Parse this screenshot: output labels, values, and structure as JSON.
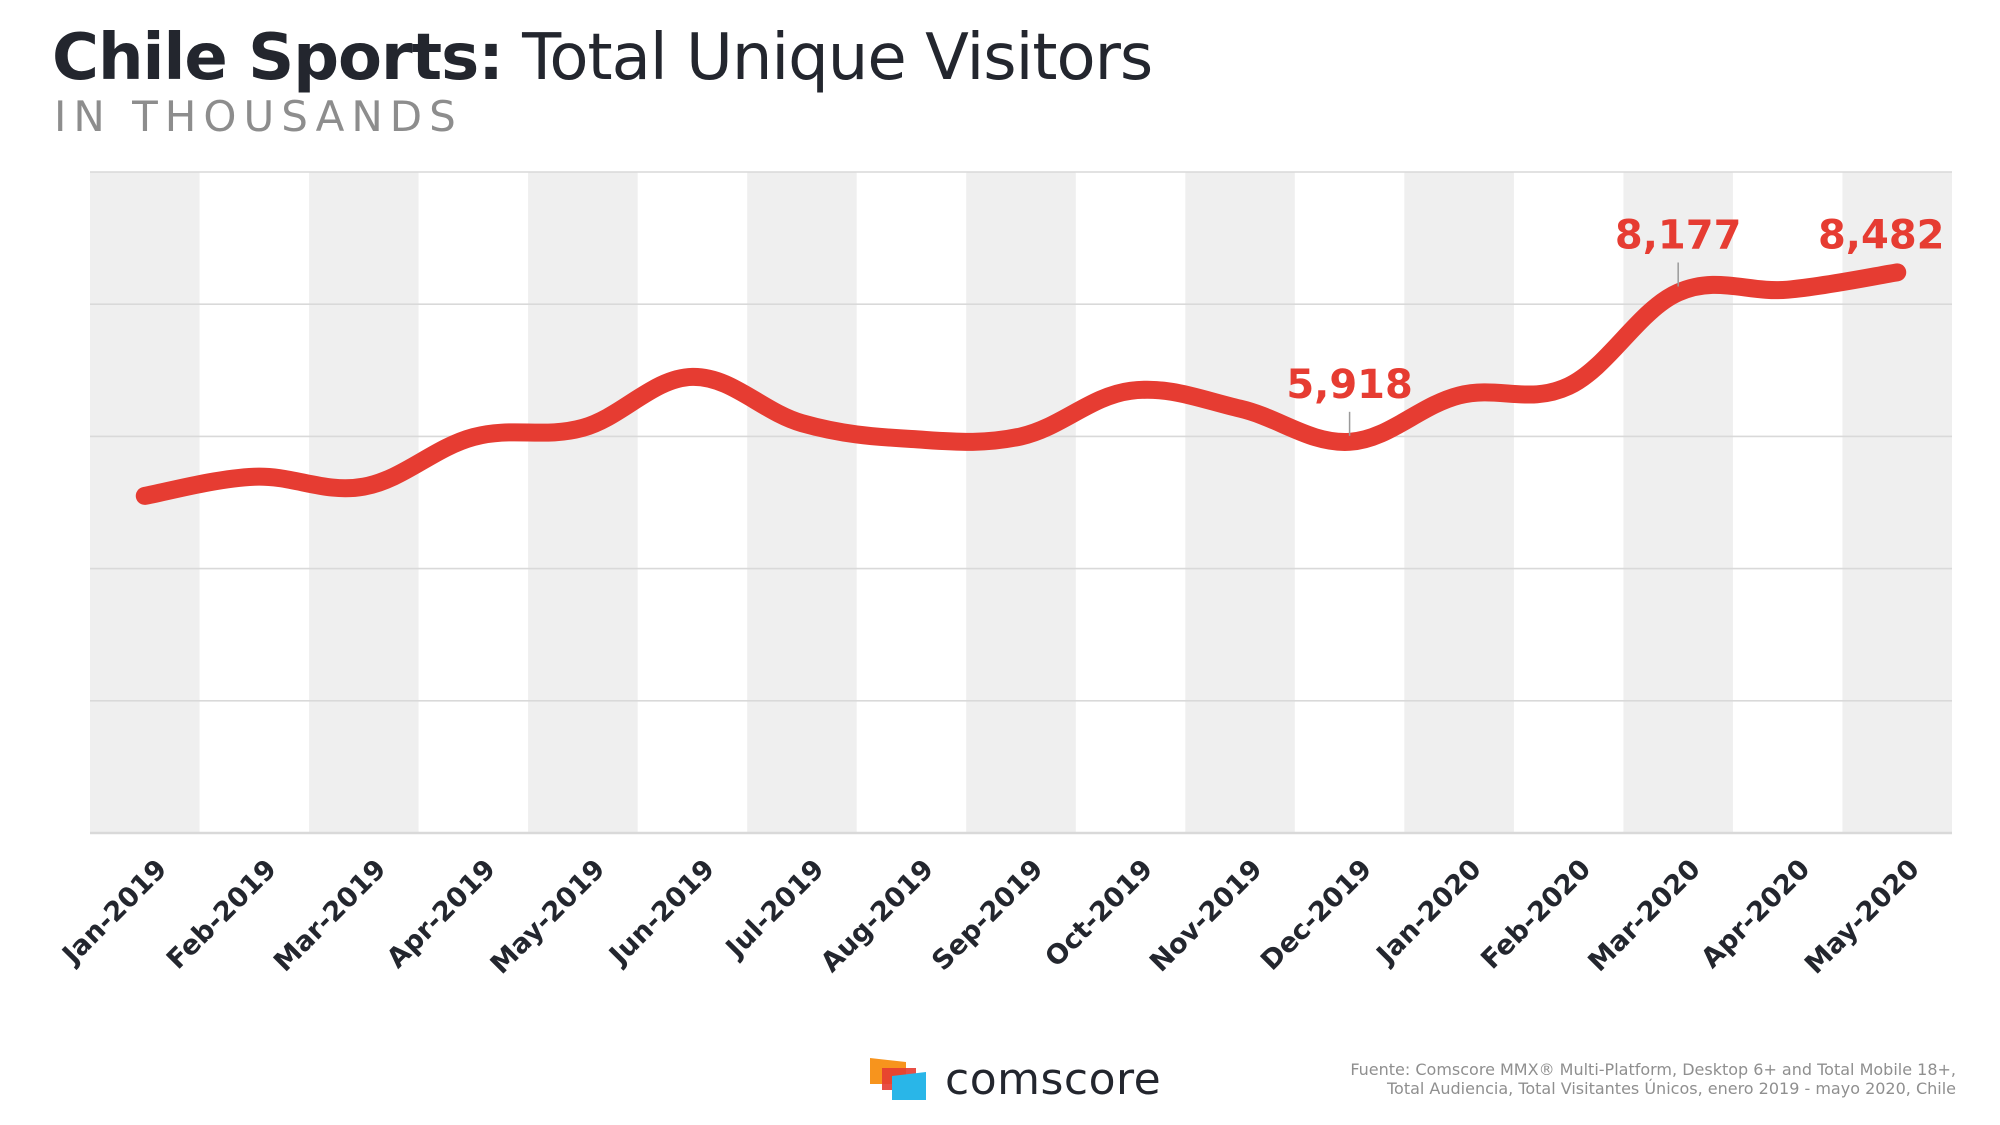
{
  "header": {
    "title_bold": "Chile Sports:",
    "title_rest": " Total Unique Visitors",
    "subtitle": "IN THOUSANDS"
  },
  "footer": {
    "brand": "comscore",
    "source_line1": "Fuente: Comscore MMX® Multi-Platform, Desktop 6+ and Total Mobile 18+,",
    "source_line2": "Total Audiencia, Total Visitantes Únicos, enero 2019 - mayo 2020, Chile"
  },
  "colors": {
    "line": "#e63c32",
    "band": "#efefef",
    "grid": "#d9d9d9",
    "text": "#23262e",
    "logo_orange": "#f7941d",
    "logo_red": "#e63c32",
    "logo_cyan": "#29b6e8"
  },
  "chart_data": {
    "type": "line",
    "title": "Chile Sports: Total Unique Visitors",
    "subtitle": "IN THOUSANDS",
    "categories": [
      "Jan-2019",
      "Feb-2019",
      "Mar-2019",
      "Apr-2019",
      "May-2019",
      "Jun-2019",
      "Jul-2019",
      "Aug-2019",
      "Sep-2019",
      "Oct-2019",
      "Nov-2019",
      "Dec-2019",
      "Jan-2020",
      "Feb-2020",
      "Mar-2020",
      "Apr-2020",
      "May-2020"
    ],
    "series": [
      {
        "values": [
          5100,
          5390,
          5240,
          5990,
          6130,
          6900,
          6200,
          5960,
          6000,
          6690,
          6420,
          5918,
          6620,
          6760,
          8177,
          8220,
          8482
        ]
      }
    ],
    "data_labels": [
      {
        "index": 11,
        "text": "5,918"
      },
      {
        "index": 14,
        "text": "8,177"
      },
      {
        "index": 16,
        "text": "8,482"
      }
    ],
    "ylim": [
      0,
      10000
    ],
    "gridlines": [
      0,
      2000,
      4000,
      6000,
      8000,
      10000
    ],
    "y_tick_labels_shown": false,
    "grid": true,
    "legend": "none"
  }
}
